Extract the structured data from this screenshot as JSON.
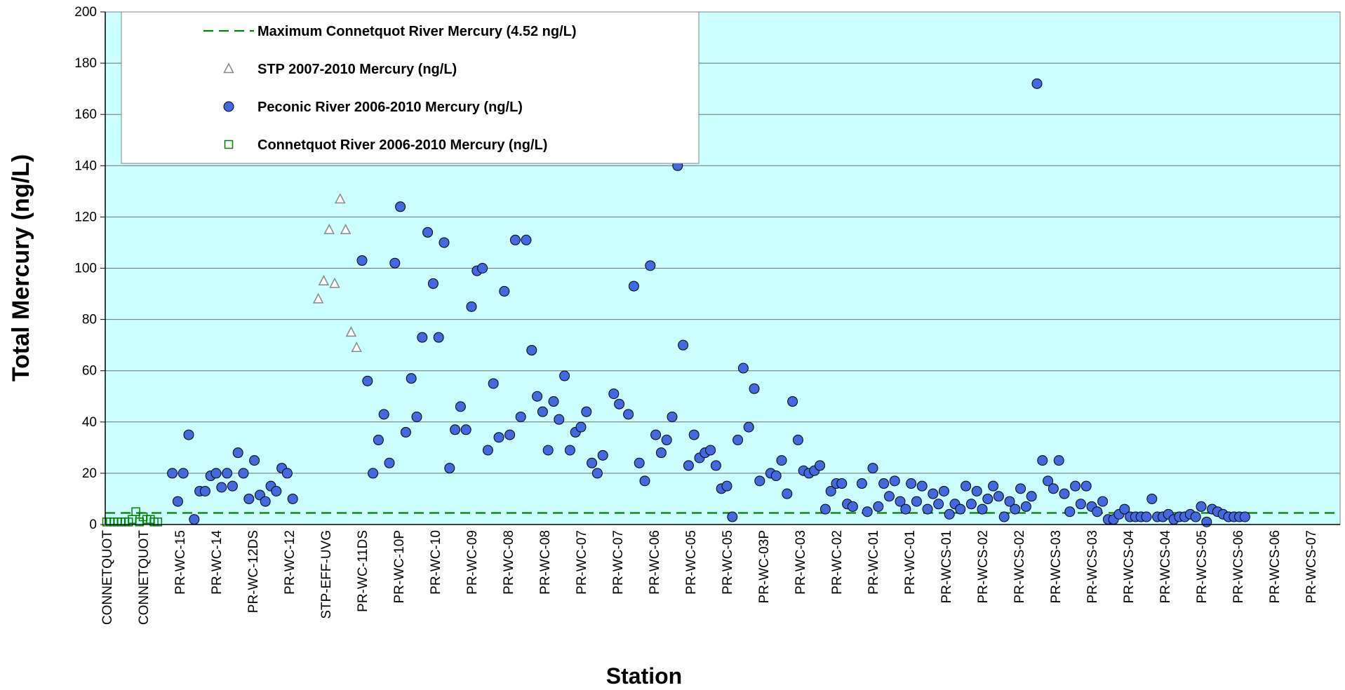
{
  "chart_data": {
    "type": "scatter",
    "xlabel": "Station",
    "ylabel": "Total Mercury (ng/L)",
    "ylim": [
      0,
      200
    ],
    "yticks": [
      0,
      20,
      40,
      60,
      80,
      100,
      120,
      140,
      160,
      180,
      200
    ],
    "grid": true,
    "legend_position": "top-left",
    "colors": {
      "plot_background": "#ccffff",
      "peconic": "#4169e1",
      "connetquot": "#008000",
      "stp": "#888888",
      "max_line": "#008000"
    },
    "categories": [
      "CONNETQUOT",
      "CONNETQUOT",
      "PR-WC-15",
      "PR-WC-14",
      "PR-WC-12DS",
      "PR-WC-12",
      "STP-EFF-UVG",
      "PR-WC-11DS",
      "PR-WC-10P",
      "PR-WC-10",
      "PR-WC-09",
      "PR-WC-08",
      "PR-WC-08",
      "PR-WC-07",
      "PR-WC-07",
      "PR-WC-06",
      "PR-WC-05",
      "PR-WC-05",
      "PR-WC-03P",
      "PR-WC-03",
      "PR-WC-02",
      "PR-WC-01",
      "PR-WC-01",
      "PR-WCS-01",
      "PR-WCS-02",
      "PR-WCS-02",
      "PR-WCS-03",
      "PR-WCS-03",
      "PR-WCS-04",
      "PR-WCS-04",
      "PR-WCS-05",
      "PR-WCS-06",
      "PR-WCS-06",
      "PR-WCS-07"
    ],
    "reference_line": {
      "name": "Maximum Connetquot River Mercury (4.52 ng/L)",
      "value": 4.52
    },
    "series": [
      {
        "name": "STP 2007-2010 Mercury (ng/L)",
        "marker": "triangle",
        "points": [
          [
            5.8,
            88
          ],
          [
            5.95,
            95
          ],
          [
            6.1,
            115
          ],
          [
            6.25,
            94
          ],
          [
            6.4,
            127
          ],
          [
            6.55,
            115
          ],
          [
            6.7,
            75
          ],
          [
            6.85,
            69
          ]
        ]
      },
      {
        "name": "Peconic River 2006-2010 Mercury (ng/L)",
        "marker": "circle",
        "points": [
          [
            1.8,
            20
          ],
          [
            1.95,
            9
          ],
          [
            2.1,
            20
          ],
          [
            2.25,
            35
          ],
          [
            2.4,
            2
          ],
          [
            2.55,
            13
          ],
          [
            2.7,
            13
          ],
          [
            2.85,
            19
          ],
          [
            3.0,
            20
          ],
          [
            3.15,
            14.5
          ],
          [
            3.3,
            20
          ],
          [
            3.45,
            15
          ],
          [
            3.6,
            28
          ],
          [
            3.75,
            20
          ],
          [
            3.9,
            10
          ],
          [
            4.05,
            25
          ],
          [
            4.2,
            11.5
          ],
          [
            4.35,
            9
          ],
          [
            4.5,
            15
          ],
          [
            4.65,
            13
          ],
          [
            4.8,
            22
          ],
          [
            4.95,
            20
          ],
          [
            5.1,
            10
          ],
          [
            7.0,
            103
          ],
          [
            7.15,
            56
          ],
          [
            7.3,
            20
          ],
          [
            7.45,
            33
          ],
          [
            7.6,
            43
          ],
          [
            7.75,
            24
          ],
          [
            7.9,
            102
          ],
          [
            8.05,
            124
          ],
          [
            8.2,
            36
          ],
          [
            8.35,
            57
          ],
          [
            8.5,
            42
          ],
          [
            8.65,
            73
          ],
          [
            8.8,
            114
          ],
          [
            8.95,
            94
          ],
          [
            9.1,
            73
          ],
          [
            9.25,
            110
          ],
          [
            9.4,
            22
          ],
          [
            9.55,
            37
          ],
          [
            9.7,
            46
          ],
          [
            9.85,
            37
          ],
          [
            10.0,
            85
          ],
          [
            10.15,
            99
          ],
          [
            10.3,
            100
          ],
          [
            10.45,
            29
          ],
          [
            10.6,
            55
          ],
          [
            10.75,
            34
          ],
          [
            10.9,
            91
          ],
          [
            11.05,
            35
          ],
          [
            11.2,
            111
          ],
          [
            11.35,
            42
          ],
          [
            11.5,
            111
          ],
          [
            11.65,
            68
          ],
          [
            11.8,
            50
          ],
          [
            11.95,
            44
          ],
          [
            12.1,
            29
          ],
          [
            12.25,
            48
          ],
          [
            12.4,
            41
          ],
          [
            12.55,
            58
          ],
          [
            12.7,
            29
          ],
          [
            12.85,
            36
          ],
          [
            13.0,
            38
          ],
          [
            13.15,
            44
          ],
          [
            13.3,
            24
          ],
          [
            13.45,
            20
          ],
          [
            13.6,
            27
          ],
          [
            13.9,
            51
          ],
          [
            14.05,
            47
          ],
          [
            14.3,
            43
          ],
          [
            14.45,
            93
          ],
          [
            14.6,
            24
          ],
          [
            14.75,
            17
          ],
          [
            14.9,
            101
          ],
          [
            15.05,
            35
          ],
          [
            15.2,
            28
          ],
          [
            15.35,
            33
          ],
          [
            15.5,
            42
          ],
          [
            15.65,
            140
          ],
          [
            15.8,
            70
          ],
          [
            15.95,
            23
          ],
          [
            16.1,
            35
          ],
          [
            16.25,
            26
          ],
          [
            16.4,
            28
          ],
          [
            16.55,
            29
          ],
          [
            16.7,
            23
          ],
          [
            16.85,
            14
          ],
          [
            17.0,
            15
          ],
          [
            17.15,
            3
          ],
          [
            17.3,
            33
          ],
          [
            17.45,
            61
          ],
          [
            17.6,
            38
          ],
          [
            17.75,
            53
          ],
          [
            17.9,
            17
          ],
          [
            18.2,
            20
          ],
          [
            18.35,
            19
          ],
          [
            18.5,
            25
          ],
          [
            18.65,
            12
          ],
          [
            18.8,
            48
          ],
          [
            18.95,
            33
          ],
          [
            19.1,
            21
          ],
          [
            19.25,
            20
          ],
          [
            19.4,
            21
          ],
          [
            19.55,
            23
          ],
          [
            19.7,
            6
          ],
          [
            19.85,
            13
          ],
          [
            20.0,
            16
          ],
          [
            20.15,
            16
          ],
          [
            20.3,
            8
          ],
          [
            20.45,
            7
          ],
          [
            20.7,
            16
          ],
          [
            20.85,
            5
          ],
          [
            21.0,
            22
          ],
          [
            21.15,
            7
          ],
          [
            21.3,
            16
          ],
          [
            21.45,
            11
          ],
          [
            21.6,
            17
          ],
          [
            21.75,
            9
          ],
          [
            21.9,
            6
          ],
          [
            22.05,
            16
          ],
          [
            22.2,
            9
          ],
          [
            22.35,
            15
          ],
          [
            22.5,
            6
          ],
          [
            22.65,
            12
          ],
          [
            22.8,
            8
          ],
          [
            22.95,
            13
          ],
          [
            23.1,
            4
          ],
          [
            23.25,
            8
          ],
          [
            23.4,
            6
          ],
          [
            23.55,
            15
          ],
          [
            23.7,
            8
          ],
          [
            23.85,
            13
          ],
          [
            24.0,
            6
          ],
          [
            24.15,
            10
          ],
          [
            24.3,
            15
          ],
          [
            24.45,
            11
          ],
          [
            24.6,
            3
          ],
          [
            24.75,
            9
          ],
          [
            24.9,
            6
          ],
          [
            25.05,
            14
          ],
          [
            25.2,
            7
          ],
          [
            25.35,
            11
          ],
          [
            25.5,
            172
          ],
          [
            25.65,
            25
          ],
          [
            25.8,
            17
          ],
          [
            25.95,
            14
          ],
          [
            26.1,
            25
          ],
          [
            26.25,
            12
          ],
          [
            26.4,
            5
          ],
          [
            26.55,
            15
          ],
          [
            26.7,
            8
          ],
          [
            26.85,
            15
          ],
          [
            27.0,
            7
          ],
          [
            27.15,
            5
          ],
          [
            27.3,
            9
          ],
          [
            27.45,
            2
          ],
          [
            27.6,
            2
          ],
          [
            27.75,
            4
          ],
          [
            27.9,
            6
          ],
          [
            28.05,
            3
          ],
          [
            28.2,
            3
          ],
          [
            28.35,
            3
          ],
          [
            28.5,
            3
          ],
          [
            28.65,
            10
          ],
          [
            28.8,
            3
          ],
          [
            28.95,
            3
          ],
          [
            29.1,
            4
          ],
          [
            29.25,
            2
          ],
          [
            29.4,
            3
          ],
          [
            29.55,
            3
          ],
          [
            29.7,
            4
          ],
          [
            29.85,
            3
          ],
          [
            30.0,
            7
          ],
          [
            30.15,
            1
          ],
          [
            30.3,
            6
          ],
          [
            30.45,
            5
          ],
          [
            30.6,
            4
          ],
          [
            30.75,
            3
          ],
          [
            30.9,
            3
          ],
          [
            31.05,
            3
          ],
          [
            31.2,
            3
          ]
        ]
      },
      {
        "name": "Connetquot River 2006-2010 Mercury (ng/L)",
        "marker": "square",
        "points": [
          [
            0.0,
            1
          ],
          [
            0.1,
            1
          ],
          [
            0.2,
            1
          ],
          [
            0.3,
            1
          ],
          [
            0.4,
            1
          ],
          [
            0.5,
            1
          ],
          [
            0.6,
            1
          ],
          [
            0.7,
            2
          ],
          [
            0.8,
            5
          ],
          [
            0.9,
            1
          ],
          [
            1.0,
            3
          ],
          [
            1.1,
            2
          ],
          [
            1.2,
            2
          ],
          [
            1.3,
            1
          ],
          [
            1.4,
            1
          ]
        ]
      }
    ]
  }
}
